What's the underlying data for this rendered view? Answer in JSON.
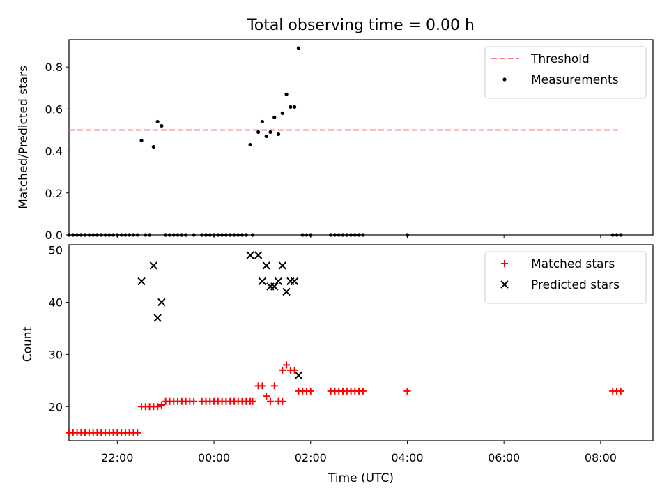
{
  "chart_data": [
    {
      "type": "scatter",
      "title": "Total observing time = 0.00 h",
      "xlabel": "",
      "ylabel": "Matched/Predicted stars",
      "xlim": [
        "21:00",
        "09:05"
      ],
      "ylim": [
        0,
        0.93
      ],
      "yticks": [
        "0.0",
        "0.2",
        "0.4",
        "0.6",
        "0.8"
      ],
      "xticks": [
        "22:00",
        "00:00",
        "02:00",
        "04:00",
        "06:00",
        "08:00"
      ],
      "show_xtick_labels": false,
      "grid": false,
      "legend_position": "upper right",
      "threshold": {
        "name": "Threshold",
        "value": 0.5,
        "x_start": "21:00",
        "x_end": "08:25",
        "color": "#ff7f7f",
        "style": "dashed"
      },
      "series": [
        {
          "name": "Measurements",
          "marker": "dot",
          "color": "#000000",
          "points": [
            [
              "21:00",
              0
            ],
            [
              "21:05",
              0
            ],
            [
              "21:10",
              0
            ],
            [
              "21:15",
              0
            ],
            [
              "21:20",
              0
            ],
            [
              "21:25",
              0
            ],
            [
              "21:30",
              0
            ],
            [
              "21:35",
              0
            ],
            [
              "21:40",
              0
            ],
            [
              "21:45",
              0
            ],
            [
              "21:50",
              0
            ],
            [
              "21:55",
              0
            ],
            [
              "22:00",
              0
            ],
            [
              "22:05",
              0
            ],
            [
              "22:10",
              0
            ],
            [
              "22:15",
              0
            ],
            [
              "22:20",
              0
            ],
            [
              "22:25",
              0
            ],
            [
              "22:30",
              0.45
            ],
            [
              "22:35",
              0
            ],
            [
              "22:40",
              0
            ],
            [
              "22:45",
              0.42
            ],
            [
              "22:50",
              0.54
            ],
            [
              "22:55",
              0.52
            ],
            [
              "23:00",
              0
            ],
            [
              "23:05",
              0
            ],
            [
              "23:10",
              0
            ],
            [
              "23:15",
              0
            ],
            [
              "23:20",
              0
            ],
            [
              "23:25",
              0
            ],
            [
              "23:35",
              0
            ],
            [
              "23:45",
              0
            ],
            [
              "23:50",
              0
            ],
            [
              "23:55",
              0
            ],
            [
              "00:00",
              0
            ],
            [
              "00:05",
              0
            ],
            [
              "00:10",
              0
            ],
            [
              "00:15",
              0
            ],
            [
              "00:20",
              0
            ],
            [
              "00:25",
              0
            ],
            [
              "00:30",
              0
            ],
            [
              "00:35",
              0
            ],
            [
              "00:40",
              0
            ],
            [
              "00:45",
              0.43
            ],
            [
              "00:48",
              0
            ],
            [
              "00:55",
              0.49
            ],
            [
              "01:00",
              0.54
            ],
            [
              "01:05",
              0.47
            ],
            [
              "01:10",
              0.49
            ],
            [
              "01:15",
              0.56
            ],
            [
              "01:20",
              0.48
            ],
            [
              "01:25",
              0.58
            ],
            [
              "01:30",
              0.67
            ],
            [
              "01:35",
              0.61
            ],
            [
              "01:40",
              0.61
            ],
            [
              "01:45",
              0.89
            ],
            [
              "01:50",
              0
            ],
            [
              "01:55",
              0
            ],
            [
              "02:00",
              0
            ],
            [
              "02:25",
              0
            ],
            [
              "02:30",
              0
            ],
            [
              "02:35",
              0
            ],
            [
              "02:40",
              0
            ],
            [
              "02:45",
              0
            ],
            [
              "02:50",
              0
            ],
            [
              "02:55",
              0
            ],
            [
              "03:00",
              0
            ],
            [
              "03:05",
              0
            ],
            [
              "04:00",
              0
            ],
            [
              "08:15",
              0
            ],
            [
              "08:20",
              0
            ],
            [
              "08:25",
              0
            ]
          ]
        }
      ]
    },
    {
      "type": "scatter",
      "title": "",
      "xlabel": "Time (UTC)",
      "ylabel": "Count",
      "xlim": [
        "21:00",
        "09:05"
      ],
      "ylim": [
        13.5,
        51
      ],
      "yticks": [
        "20",
        "30",
        "40",
        "50"
      ],
      "xticks": [
        "22:00",
        "00:00",
        "02:00",
        "04:00",
        "06:00",
        "08:00"
      ],
      "show_xtick_labels": true,
      "grid": false,
      "legend_position": "upper right",
      "series": [
        {
          "name": "Matched stars",
          "marker": "plus",
          "color": "#ff0000",
          "points": [
            [
              "21:00",
              15
            ],
            [
              "21:05",
              15
            ],
            [
              "21:10",
              15
            ],
            [
              "21:15",
              15
            ],
            [
              "21:20",
              15
            ],
            [
              "21:25",
              15
            ],
            [
              "21:30",
              15
            ],
            [
              "21:35",
              15
            ],
            [
              "21:40",
              15
            ],
            [
              "21:45",
              15
            ],
            [
              "21:50",
              15
            ],
            [
              "21:55",
              15
            ],
            [
              "22:00",
              15
            ],
            [
              "22:05",
              15
            ],
            [
              "22:10",
              15
            ],
            [
              "22:15",
              15
            ],
            [
              "22:20",
              15
            ],
            [
              "22:25",
              15
            ],
            [
              "22:30",
              20
            ],
            [
              "22:35",
              20
            ],
            [
              "22:40",
              20
            ],
            [
              "22:45",
              20
            ],
            [
              "22:50",
              20
            ],
            [
              "22:55",
              20.3
            ],
            [
              "23:00",
              21
            ],
            [
              "23:05",
              21
            ],
            [
              "23:10",
              21
            ],
            [
              "23:15",
              21
            ],
            [
              "23:20",
              21
            ],
            [
              "23:25",
              21
            ],
            [
              "23:30",
              21
            ],
            [
              "23:35",
              21
            ],
            [
              "23:45",
              21
            ],
            [
              "23:50",
              21
            ],
            [
              "23:55",
              21
            ],
            [
              "00:00",
              21
            ],
            [
              "00:05",
              21
            ],
            [
              "00:10",
              21
            ],
            [
              "00:15",
              21
            ],
            [
              "00:20",
              21
            ],
            [
              "00:25",
              21
            ],
            [
              "00:30",
              21
            ],
            [
              "00:35",
              21
            ],
            [
              "00:40",
              21
            ],
            [
              "00:45",
              21
            ],
            [
              "00:48",
              21
            ],
            [
              "00:55",
              24
            ],
            [
              "01:00",
              24
            ],
            [
              "01:05",
              22
            ],
            [
              "01:10",
              21
            ],
            [
              "01:15",
              24
            ],
            [
              "01:20",
              21
            ],
            [
              "01:25",
              21
            ],
            [
              "01:25",
              27
            ],
            [
              "01:30",
              28
            ],
            [
              "01:35",
              27
            ],
            [
              "01:40",
              27
            ],
            [
              "01:45",
              23
            ],
            [
              "01:50",
              23
            ],
            [
              "01:55",
              23
            ],
            [
              "02:00",
              23
            ],
            [
              "02:25",
              23
            ],
            [
              "02:30",
              23
            ],
            [
              "02:35",
              23
            ],
            [
              "02:40",
              23
            ],
            [
              "02:45",
              23
            ],
            [
              "02:50",
              23
            ],
            [
              "02:55",
              23
            ],
            [
              "03:00",
              23
            ],
            [
              "03:05",
              23
            ],
            [
              "04:00",
              23
            ],
            [
              "08:15",
              23
            ],
            [
              "08:20",
              23
            ],
            [
              "08:25",
              23
            ]
          ]
        },
        {
          "name": "Predicted stars",
          "marker": "x",
          "color": "#000000",
          "points": [
            [
              "22:30",
              44
            ],
            [
              "22:45",
              47
            ],
            [
              "22:50",
              37
            ],
            [
              "22:55",
              40
            ],
            [
              "00:45",
              49
            ],
            [
              "00:55",
              49
            ],
            [
              "01:00",
              44
            ],
            [
              "01:05",
              47
            ],
            [
              "01:10",
              43
            ],
            [
              "01:15",
              43
            ],
            [
              "01:20",
              44
            ],
            [
              "01:25",
              47
            ],
            [
              "01:30",
              42
            ],
            [
              "01:35",
              44
            ],
            [
              "01:40",
              44
            ],
            [
              "01:45",
              26
            ]
          ]
        }
      ]
    }
  ]
}
